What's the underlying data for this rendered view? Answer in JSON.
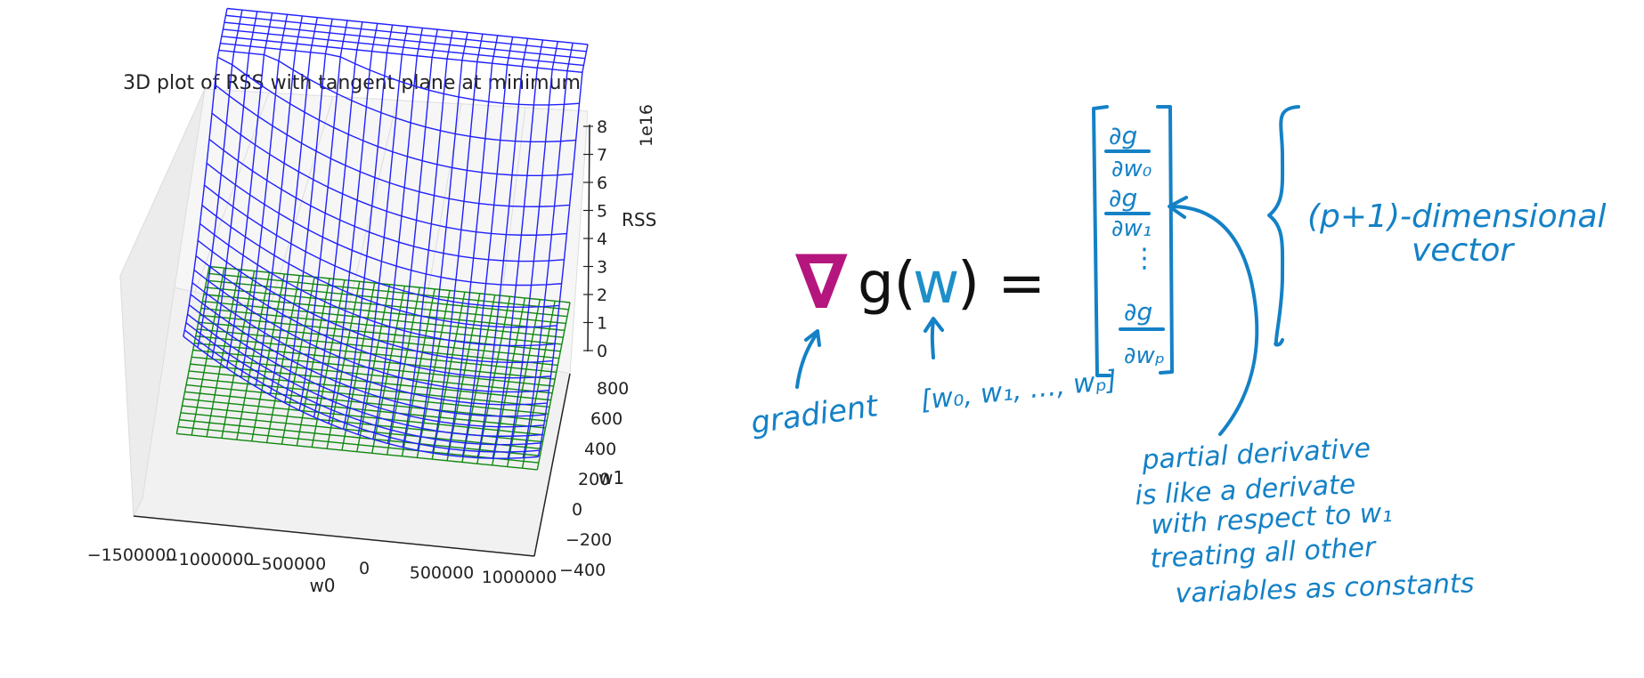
{
  "chart_data": {
    "type": "surface3d",
    "title": "3D plot of RSS with tangent plane at minimum",
    "xlabel": "w0",
    "ylabel": "w1",
    "zlabel": "RSS",
    "z_multiplier": "1e16",
    "x_ticks": [
      "−1500000",
      "−1000000",
      "−500000",
      "0",
      "500000",
      "1000000"
    ],
    "y_ticks": [
      "−400",
      "−200",
      "0",
      "200",
      "400",
      "600",
      "800"
    ],
    "z_ticks": [
      "0",
      "1",
      "2",
      "3",
      "4",
      "5",
      "6",
      "7",
      "8"
    ],
    "xlim": [
      -1500000,
      1000000
    ],
    "ylim": [
      -400,
      800
    ],
    "zlim": [
      0,
      8
    ],
    "series": [
      {
        "surface": "rss",
        "color": "#2020ff"
      },
      {
        "surface": "tangent-plane",
        "color": "#118811"
      }
    ]
  },
  "equation": {
    "nabla": "∇",
    "g_open": "g(",
    "w": "w",
    "close_eq": ") =",
    "nabla_color": "#b5167e",
    "w_color": "#1e8fc8"
  },
  "annotations": {
    "gradient": "gradient",
    "w_vector": "[w₀, w₁, …, wₚ]",
    "vector_top": "∂g",
    "vector_top_den": "∂w₀",
    "vector_second": "∂g",
    "vector_second_den": "∂w₁",
    "vector_dots": "⋮",
    "vector_last": "∂g",
    "vector_last_den": "∂wₚ",
    "dimension_line1": "(p+1)-dimensional",
    "dimension_line2": "vector",
    "note_line1": "partial derivative",
    "note_line2": "is like a derivate",
    "note_line3": "with respect to w₁",
    "note_line4": "treating all other",
    "note_line5": "variables as constants"
  },
  "colors": {
    "ink": "#1481c6",
    "grid": "#cccccc",
    "text": "#222222"
  }
}
